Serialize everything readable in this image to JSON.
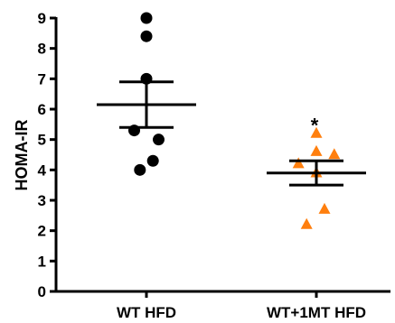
{
  "chart_data": {
    "type": "scatter",
    "title": "",
    "xlabel": "",
    "ylabel": "HOMA-IR",
    "ylim": [
      0,
      9
    ],
    "yticks": [
      0,
      1,
      2,
      3,
      4,
      5,
      6,
      7,
      8,
      9
    ],
    "grid": false,
    "legend": "none",
    "categories": [
      "WT HFD",
      "WT+1MT HFD"
    ],
    "series": [
      {
        "category": "WT HFD",
        "marker": "circle",
        "color": "#000000",
        "points": [
          {
            "dx": 0.0,
            "y": 9.0
          },
          {
            "dx": 0.0,
            "y": 8.4
          },
          {
            "dx": 0.0,
            "y": 7.0
          },
          {
            "dx": -0.15,
            "y": 5.3
          },
          {
            "dx": 0.15,
            "y": 5.0
          },
          {
            "dx": 0.08,
            "y": 4.3
          },
          {
            "dx": -0.08,
            "y": 4.0
          }
        ],
        "mean": 6.15,
        "sem": [
          5.4,
          6.9
        ]
      },
      {
        "category": "WT+1MT HFD",
        "marker": "triangle",
        "color": "#FF7F0E",
        "points": [
          {
            "dx": 0.0,
            "y": 5.2
          },
          {
            "dx": 0.0,
            "y": 4.6
          },
          {
            "dx": 0.22,
            "y": 4.5
          },
          {
            "dx": -0.22,
            "y": 4.2
          },
          {
            "dx": 0.0,
            "y": 3.9
          },
          {
            "dx": 0.1,
            "y": 2.7
          },
          {
            "dx": -0.12,
            "y": 2.2
          }
        ],
        "mean": 3.9,
        "sem": [
          3.5,
          4.3
        ]
      }
    ],
    "annotations": [
      {
        "text": "*",
        "category": "WT+1MT HFD",
        "y": 5.6
      }
    ]
  }
}
